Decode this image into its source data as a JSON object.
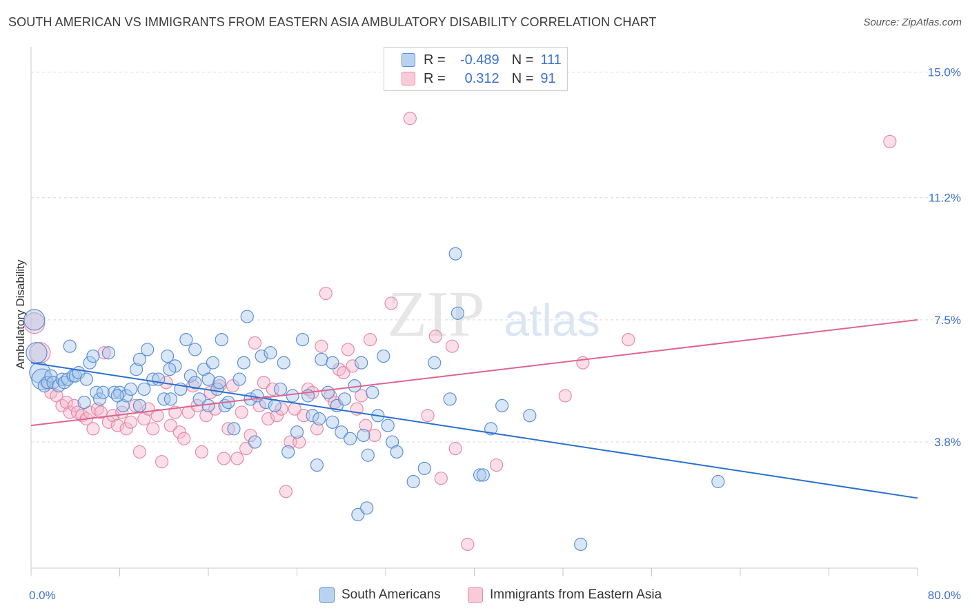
{
  "title": "SOUTH AMERICAN VS IMMIGRANTS FROM EASTERN ASIA AMBULATORY DISABILITY CORRELATION CHART",
  "source": "Source: ZipAtlas.com",
  "watermark": {
    "zip": "ZIP",
    "atlas": "atlas"
  },
  "legend_stats": [
    {
      "r_label": "R =",
      "r_value": "-0.489",
      "n_label": "N =",
      "n_value": "111"
    },
    {
      "r_label": "R =",
      "r_value": "0.312",
      "n_label": "N =",
      "n_value": "91"
    }
  ],
  "colors": {
    "blue_fill": "#a9c7ec",
    "blue_stroke": "#5b8fd6",
    "blue_line": "#2a6fd1",
    "pink_fill": "#f5b8cb",
    "pink_stroke": "#e78aa7",
    "pink_line": "#e0648e",
    "tick_label": "#3b6fd0",
    "grid": "#d9d9d9"
  },
  "chart_data": {
    "type": "scatter",
    "title": "SOUTH AMERICAN VS IMMIGRANTS FROM EASTERN ASIA AMBULATORY DISABILITY CORRELATION CHART",
    "xlabel": "",
    "ylabel": "Ambulatory Disability",
    "xlim": [
      0,
      80
    ],
    "ylim": [
      0,
      15.6
    ],
    "x_ticks": [
      0,
      80
    ],
    "x_tick_labels": [
      "0.0%",
      "80.0%"
    ],
    "y_ticks": [
      3.8,
      7.5,
      11.2,
      15.0
    ],
    "y_tick_labels": [
      "3.8%",
      "7.5%",
      "11.2%",
      "15.0%"
    ],
    "grid": true,
    "legend_position": "top-center",
    "series": [
      {
        "name": "South Americans",
        "color": "#a9c7ec",
        "trend": {
          "x": [
            0,
            80
          ],
          "y": [
            6.2,
            2.1
          ]
        },
        "points": [
          [
            0.3,
            7.5
          ],
          [
            0.5,
            6.5
          ],
          [
            0.8,
            5.9
          ],
          [
            1.0,
            5.7
          ],
          [
            1.2,
            5.5
          ],
          [
            1.5,
            5.6
          ],
          [
            1.8,
            5.8
          ],
          [
            2.0,
            5.6
          ],
          [
            2.5,
            5.5
          ],
          [
            2.8,
            5.7
          ],
          [
            3.0,
            5.6
          ],
          [
            3.3,
            5.7
          ],
          [
            3.5,
            6.7
          ],
          [
            3.8,
            5.8
          ],
          [
            4.0,
            5.8
          ],
          [
            4.3,
            5.9
          ],
          [
            5.0,
            5.7
          ],
          [
            5.3,
            6.2
          ],
          [
            5.6,
            6.4
          ],
          [
            5.9,
            5.3
          ],
          [
            6.2,
            5.1
          ],
          [
            6.5,
            5.3
          ],
          [
            7.0,
            6.5
          ],
          [
            7.5,
            5.3
          ],
          [
            8.0,
            5.3
          ],
          [
            8.3,
            4.9
          ],
          [
            8.6,
            5.2
          ],
          [
            9.0,
            5.4
          ],
          [
            9.5,
            6.0
          ],
          [
            9.8,
            6.3
          ],
          [
            10.2,
            5.4
          ],
          [
            10.5,
            6.6
          ],
          [
            11.0,
            5.7
          ],
          [
            11.5,
            5.7
          ],
          [
            12.0,
            5.1
          ],
          [
            12.3,
            6.4
          ],
          [
            12.6,
            5.1
          ],
          [
            13.0,
            6.1
          ],
          [
            13.5,
            5.4
          ],
          [
            14.0,
            6.9
          ],
          [
            14.4,
            5.8
          ],
          [
            14.8,
            6.6
          ],
          [
            15.2,
            5.1
          ],
          [
            15.6,
            6.0
          ],
          [
            16.0,
            5.7
          ],
          [
            16.4,
            6.2
          ],
          [
            16.8,
            5.4
          ],
          [
            17.2,
            6.9
          ],
          [
            17.5,
            4.9
          ],
          [
            17.8,
            5.0
          ],
          [
            18.3,
            4.2
          ],
          [
            18.8,
            5.7
          ],
          [
            19.2,
            6.2
          ],
          [
            19.5,
            7.6
          ],
          [
            19.8,
            5.1
          ],
          [
            20.2,
            3.8
          ],
          [
            20.8,
            6.4
          ],
          [
            21.2,
            5.0
          ],
          [
            21.6,
            6.5
          ],
          [
            22.0,
            4.9
          ],
          [
            22.5,
            5.4
          ],
          [
            22.8,
            6.2
          ],
          [
            23.2,
            3.5
          ],
          [
            23.6,
            5.2
          ],
          [
            24.0,
            4.1
          ],
          [
            24.5,
            6.9
          ],
          [
            25.0,
            5.2
          ],
          [
            25.4,
            4.6
          ],
          [
            25.8,
            3.1
          ],
          [
            26.2,
            6.3
          ],
          [
            26.8,
            5.3
          ],
          [
            27.2,
            6.2
          ],
          [
            27.6,
            4.9
          ],
          [
            28.0,
            4.1
          ],
          [
            28.3,
            5.1
          ],
          [
            28.8,
            3.9
          ],
          [
            29.2,
            5.5
          ],
          [
            29.8,
            6.2
          ],
          [
            30.0,
            4.0
          ],
          [
            30.4,
            3.4
          ],
          [
            30.8,
            5.3
          ],
          [
            31.3,
            4.6
          ],
          [
            31.8,
            6.4
          ],
          [
            32.2,
            4.3
          ],
          [
            32.6,
            3.8
          ],
          [
            33.0,
            3.5
          ],
          [
            34.5,
            2.6
          ],
          [
            35.5,
            3.0
          ],
          [
            36.4,
            6.2
          ],
          [
            37.8,
            5.1
          ],
          [
            38.5,
            7.7
          ],
          [
            38.3,
            9.5
          ],
          [
            40.5,
            2.8
          ],
          [
            40.8,
            2.8
          ],
          [
            41.5,
            4.2
          ],
          [
            42.5,
            4.9
          ],
          [
            45.0,
            4.6
          ],
          [
            49.6,
            0.7
          ],
          [
            62.0,
            2.6
          ],
          [
            29.5,
            1.6
          ],
          [
            30.3,
            1.8
          ],
          [
            9.8,
            4.9
          ],
          [
            20.4,
            5.2
          ],
          [
            16.0,
            4.9
          ],
          [
            26.0,
            4.5
          ],
          [
            12.5,
            6.0
          ],
          [
            17.0,
            5.6
          ],
          [
            7.8,
            5.2
          ],
          [
            27.2,
            4.4
          ],
          [
            14.8,
            5.6
          ],
          [
            4.8,
            5.0
          ]
        ]
      },
      {
        "name": "Immigrants from Eastern Asia",
        "color": "#f5b8cb",
        "trend": {
          "x": [
            0,
            80
          ],
          "y": [
            4.3,
            7.5
          ]
        },
        "points": [
          [
            0.3,
            7.4
          ],
          [
            0.8,
            6.5
          ],
          [
            1.4,
            5.6
          ],
          [
            1.8,
            5.3
          ],
          [
            2.3,
            5.2
          ],
          [
            2.8,
            4.9
          ],
          [
            3.2,
            5.0
          ],
          [
            3.5,
            4.7
          ],
          [
            3.9,
            4.9
          ],
          [
            4.2,
            4.7
          ],
          [
            4.6,
            4.6
          ],
          [
            5.0,
            4.5
          ],
          [
            5.3,
            4.7
          ],
          [
            5.6,
            4.2
          ],
          [
            6.0,
            4.8
          ],
          [
            6.3,
            4.7
          ],
          [
            6.6,
            6.5
          ],
          [
            7.0,
            4.4
          ],
          [
            7.4,
            4.6
          ],
          [
            7.8,
            4.3
          ],
          [
            8.2,
            4.7
          ],
          [
            8.6,
            4.2
          ],
          [
            9.0,
            4.4
          ],
          [
            9.4,
            4.9
          ],
          [
            9.8,
            3.5
          ],
          [
            10.2,
            4.5
          ],
          [
            10.6,
            4.8
          ],
          [
            11.0,
            4.2
          ],
          [
            11.4,
            4.6
          ],
          [
            11.8,
            3.2
          ],
          [
            12.2,
            5.6
          ],
          [
            12.6,
            4.3
          ],
          [
            13.0,
            4.7
          ],
          [
            13.4,
            4.1
          ],
          [
            13.8,
            3.9
          ],
          [
            14.2,
            4.7
          ],
          [
            14.6,
            5.5
          ],
          [
            15.0,
            4.9
          ],
          [
            15.4,
            3.5
          ],
          [
            15.8,
            4.6
          ],
          [
            16.2,
            5.3
          ],
          [
            16.6,
            4.8
          ],
          [
            17.0,
            5.5
          ],
          [
            17.4,
            3.3
          ],
          [
            17.8,
            4.2
          ],
          [
            18.2,
            5.5
          ],
          [
            18.6,
            3.3
          ],
          [
            19.0,
            4.7
          ],
          [
            19.4,
            3.6
          ],
          [
            19.8,
            4.0
          ],
          [
            20.2,
            6.8
          ],
          [
            20.6,
            4.9
          ],
          [
            21.0,
            5.6
          ],
          [
            21.4,
            4.5
          ],
          [
            21.8,
            5.4
          ],
          [
            22.2,
            4.6
          ],
          [
            22.6,
            4.8
          ],
          [
            23.0,
            2.3
          ],
          [
            23.4,
            3.8
          ],
          [
            23.8,
            4.8
          ],
          [
            24.2,
            3.8
          ],
          [
            24.6,
            4.6
          ],
          [
            25.0,
            5.4
          ],
          [
            25.4,
            5.3
          ],
          [
            25.8,
            4.2
          ],
          [
            26.2,
            6.7
          ],
          [
            26.6,
            8.3
          ],
          [
            27.0,
            5.2
          ],
          [
            27.4,
            5.0
          ],
          [
            27.8,
            6.0
          ],
          [
            28.2,
            5.9
          ],
          [
            28.6,
            6.6
          ],
          [
            29.0,
            6.1
          ],
          [
            29.4,
            4.8
          ],
          [
            29.8,
            5.2
          ],
          [
            30.2,
            4.3
          ],
          [
            30.6,
            6.9
          ],
          [
            31.0,
            4.0
          ],
          [
            32.5,
            8.0
          ],
          [
            34.2,
            13.6
          ],
          [
            35.8,
            4.6
          ],
          [
            37.0,
            2.7
          ],
          [
            38.0,
            6.7
          ],
          [
            38.3,
            3.6
          ],
          [
            39.4,
            0.7
          ],
          [
            42.0,
            3.1
          ],
          [
            48.2,
            5.2
          ],
          [
            49.8,
            6.2
          ],
          [
            53.9,
            6.9
          ],
          [
            77.5,
            12.9
          ],
          [
            36.5,
            7.0
          ]
        ]
      }
    ]
  },
  "legend_bottom": [
    "South Americans",
    "Immigrants from Eastern Asia"
  ]
}
